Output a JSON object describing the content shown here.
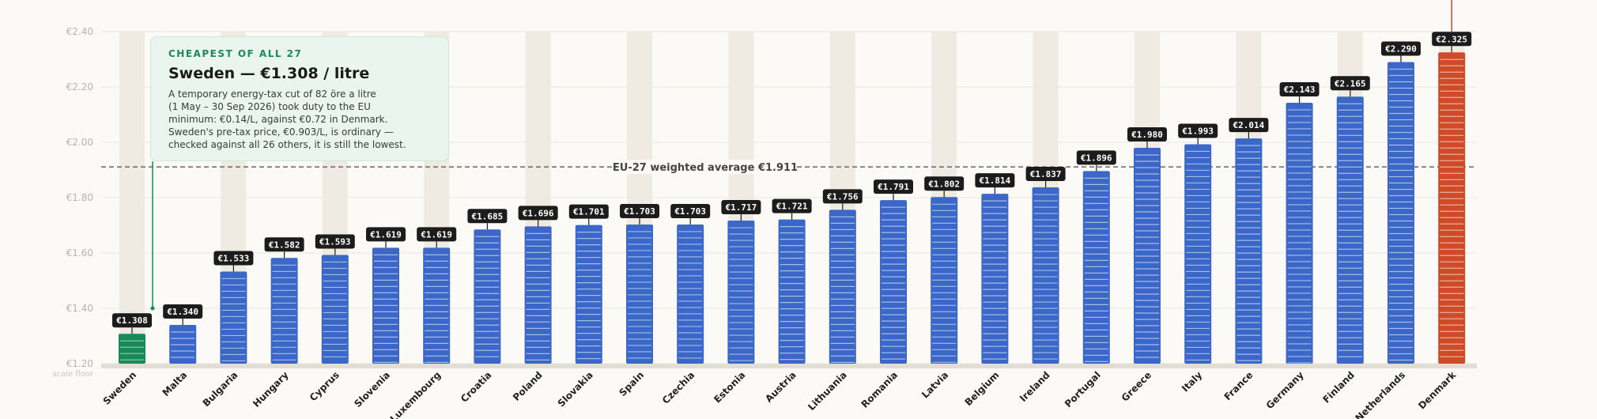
{
  "chart_data": {
    "type": "bar",
    "categories": [
      "Sweden",
      "Malta",
      "Bulgaria",
      "Hungary",
      "Cyprus",
      "Slovenia",
      "Luxembourg",
      "Croatia",
      "Poland",
      "Slovakia",
      "Spain",
      "Czechia",
      "Estonia",
      "Austria",
      "Lithuania",
      "Romania",
      "Latvia",
      "Belgium",
      "Ireland",
      "Portugal",
      "Greece",
      "Italy",
      "France",
      "Germany",
      "Finland",
      "Netherlands",
      "Denmark"
    ],
    "values": [
      1.308,
      1.34,
      1.533,
      1.582,
      1.593,
      1.619,
      1.619,
      1.685,
      1.696,
      1.701,
      1.703,
      1.703,
      1.717,
      1.721,
      1.756,
      1.791,
      1.802,
      1.814,
      1.837,
      1.896,
      1.98,
      1.993,
      2.014,
      2.143,
      2.165,
      2.29,
      2.325
    ],
    "value_labels": [
      "€1.308",
      "€1.340",
      "€1.533",
      "€1.582",
      "€1.593",
      "€1.619",
      "€1.619",
      "€1.685",
      "€1.696",
      "€1.701",
      "€1.703",
      "€1.703",
      "€1.717",
      "€1.721",
      "€1.756",
      "€1.791",
      "€1.802",
      "€1.814",
      "€1.837",
      "€1.896",
      "€1.980",
      "€1.993",
      "€2.014",
      "€2.143",
      "€2.165",
      "€2.290",
      "€2.325"
    ],
    "ylim": [
      1.2,
      2.4
    ],
    "y_ticks": [
      1.2,
      1.4,
      1.6,
      1.8,
      2.0,
      2.2,
      2.4
    ],
    "y_tick_labels": [
      "€1.20",
      "€1.40",
      "€1.60",
      "€1.80",
      "€2.00",
      "€2.20",
      "€2.40"
    ],
    "scale_floor_label": "scale floor",
    "average": {
      "value": 1.911,
      "label": "EU-27 weighted average €1.911"
    },
    "grid": true,
    "colors": {
      "lowest": "#178a57",
      "highest": "#cf4a28",
      "other": "#3b67c8",
      "column_band": "#efebe3",
      "average_line": "#666666",
      "label_bg": "#1c1c1c",
      "label_text": "#ffffff",
      "axis_text": "#b3b3b3"
    },
    "annotation": {
      "kicker": "CHEAPEST OF ALL 27",
      "headline": "Sweden — €1.308 / litre",
      "body": [
        "A temporary energy-tax cut of 82 öre a litre",
        "(1 May – 30 Sep 2026) took duty to the EU",
        "minimum: €0.14/L, against €0.72 in Denmark.",
        "Sweden's pre-tax price, €0.903/L, is ordinary —",
        "checked against all 26 others, it is still the lowest."
      ]
    }
  }
}
